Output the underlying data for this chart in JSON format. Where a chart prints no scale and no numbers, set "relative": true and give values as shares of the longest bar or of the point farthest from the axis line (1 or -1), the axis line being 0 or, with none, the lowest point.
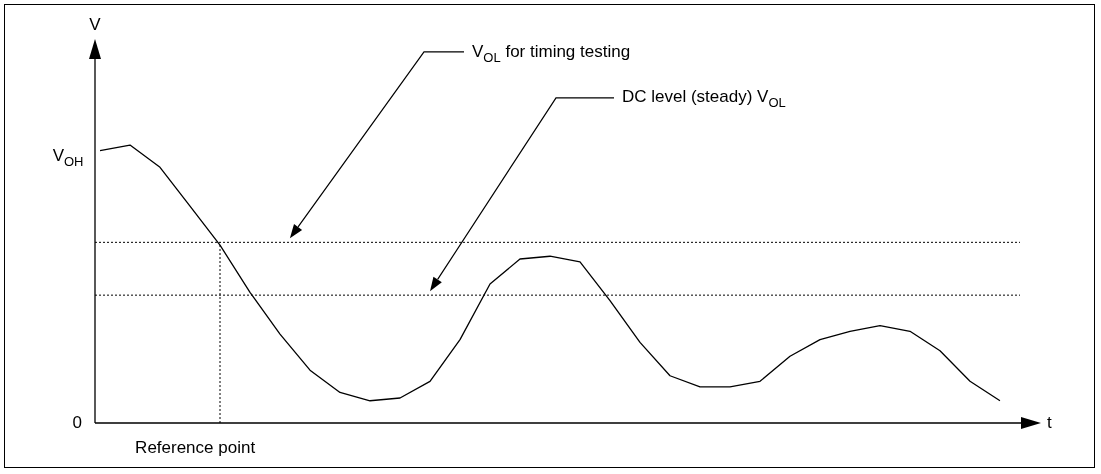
{
  "chart_data": {
    "type": "line",
    "xlabel": "t",
    "relative": true,
    "categories": [
      null,
      null,
      null,
      null,
      null,
      null,
      null,
      null,
      null,
      null,
      null,
      null,
      null,
      null,
      null,
      null,
      null,
      null,
      null,
      null,
      null,
      null,
      null,
      null,
      null,
      null,
      null,
      null,
      null,
      null,
      null
    ],
    "values": [
      0.98,
      1,
      0.92,
      0.78,
      0.64,
      0.47,
      0.32,
      0.19,
      0.11,
      0.08,
      0.09,
      0.15,
      0.3,
      0.5,
      0.59,
      0.6,
      0.58,
      0.44,
      0.29,
      0.17,
      0.13,
      0.13,
      0.15,
      0.24,
      0.3,
      0.33,
      0.35,
      0.33,
      0.26,
      0.15,
      0.08
    ],
    "color": "#000000",
    "ref_lines": [
      {
        "axis": "y",
        "value": 0.65,
        "line_style": "dotted"
      },
      {
        "axis": "y",
        "value": 0.46,
        "line_style": "dotted"
      }
    ],
    "annotations": [
      "V$_{OL}$ for timing testing",
      "DC level (steady) V$_{OL}$",
      "0",
      "V$_{OH}$",
      "Reference point",
      "V"
    ]
  }
}
